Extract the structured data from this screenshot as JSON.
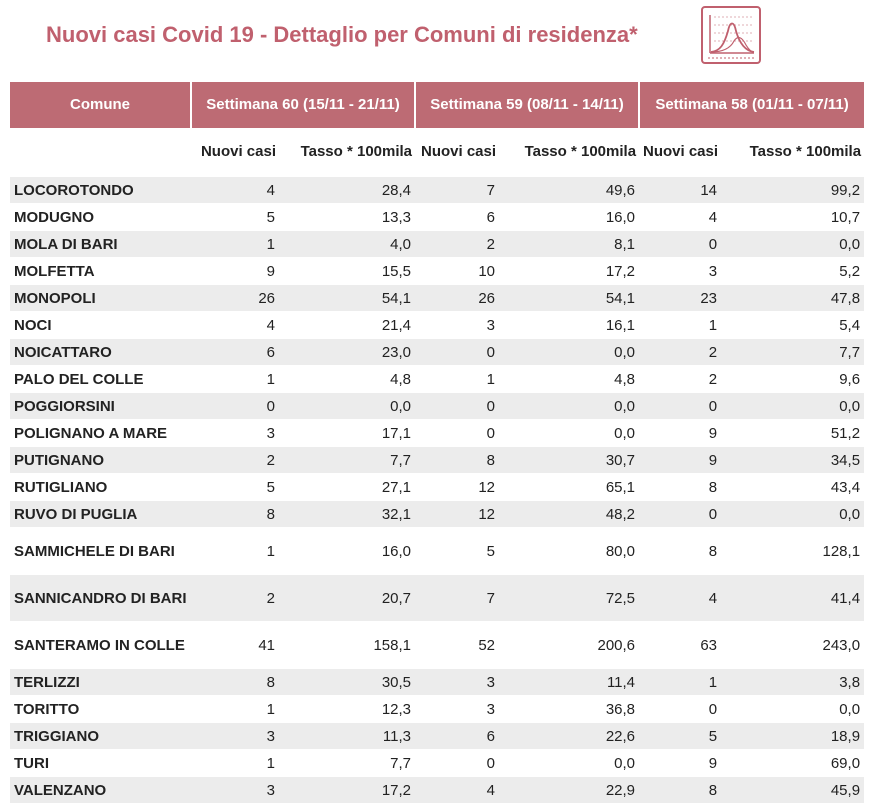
{
  "title": "Nuovi casi Covid 19 - Dettaglio per Comuni di residenza*",
  "logo_icon": "epidemic-curve-icon",
  "accent_color": "#bd6b74",
  "title_color": "#c0606e",
  "table": {
    "headers": {
      "comune": "Comune",
      "week60": "Settimana 60 (15/11 - 21/11)",
      "week59": "Settimana 59 (08/11 - 14/11)",
      "week58": "Settimana 58 (01/11 - 07/11)"
    },
    "subheaders": {
      "cases": "Nuovi casi",
      "rate": "Tasso * 100mila"
    },
    "rows": [
      {
        "name": "LOCOROTONDO",
        "w60c": "4",
        "w60r": "28,4",
        "w59c": "7",
        "w59r": "49,6",
        "w58c": "14",
        "w58r": "99,2"
      },
      {
        "name": "MODUGNO",
        "w60c": "5",
        "w60r": "13,3",
        "w59c": "6",
        "w59r": "16,0",
        "w58c": "4",
        "w58r": "10,7"
      },
      {
        "name": "MOLA DI BARI",
        "w60c": "1",
        "w60r": "4,0",
        "w59c": "2",
        "w59r": "8,1",
        "w58c": "0",
        "w58r": "0,0"
      },
      {
        "name": "MOLFETTA",
        "w60c": "9",
        "w60r": "15,5",
        "w59c": "10",
        "w59r": "17,2",
        "w58c": "3",
        "w58r": "5,2"
      },
      {
        "name": "MONOPOLI",
        "w60c": "26",
        "w60r": "54,1",
        "w59c": "26",
        "w59r": "54,1",
        "w58c": "23",
        "w58r": "47,8"
      },
      {
        "name": "NOCI",
        "w60c": "4",
        "w60r": "21,4",
        "w59c": "3",
        "w59r": "16,1",
        "w58c": "1",
        "w58r": "5,4"
      },
      {
        "name": "NOICATTARO",
        "w60c": "6",
        "w60r": "23,0",
        "w59c": "0",
        "w59r": "0,0",
        "w58c": "2",
        "w58r": "7,7"
      },
      {
        "name": "PALO DEL COLLE",
        "w60c": "1",
        "w60r": "4,8",
        "w59c": "1",
        "w59r": "4,8",
        "w58c": "2",
        "w58r": "9,6"
      },
      {
        "name": "POGGIORSINI",
        "w60c": "0",
        "w60r": "0,0",
        "w59c": "0",
        "w59r": "0,0",
        "w58c": "0",
        "w58r": "0,0"
      },
      {
        "name": "POLIGNANO A MARE",
        "w60c": "3",
        "w60r": "17,1",
        "w59c": "0",
        "w59r": "0,0",
        "w58c": "9",
        "w58r": "51,2"
      },
      {
        "name": "PUTIGNANO",
        "w60c": "2",
        "w60r": "7,7",
        "w59c": "8",
        "w59r": "30,7",
        "w58c": "9",
        "w58r": "34,5"
      },
      {
        "name": "RUTIGLIANO",
        "w60c": "5",
        "w60r": "27,1",
        "w59c": "12",
        "w59r": "65,1",
        "w58c": "8",
        "w58r": "43,4"
      },
      {
        "name": "RUVO DI PUGLIA",
        "w60c": "8",
        "w60r": "32,1",
        "w59c": "12",
        "w59r": "48,2",
        "w58c": "0",
        "w58r": "0,0"
      },
      {
        "name": "SAMMICHELE DI BARI",
        "w60c": "1",
        "w60r": "16,0",
        "w59c": "5",
        "w59r": "80,0",
        "w58c": "8",
        "w58r": "128,1",
        "tall": true
      },
      {
        "name": "SANNICANDRO DI BARI",
        "w60c": "2",
        "w60r": "20,7",
        "w59c": "7",
        "w59r": "72,5",
        "w58c": "4",
        "w58r": "41,4",
        "tall": true
      },
      {
        "name": "SANTERAMO IN COLLE",
        "w60c": "41",
        "w60r": "158,1",
        "w59c": "52",
        "w59r": "200,6",
        "w58c": "63",
        "w58r": "243,0",
        "tall": true
      },
      {
        "name": "TERLIZZI",
        "w60c": "8",
        "w60r": "30,5",
        "w59c": "3",
        "w59r": "11,4",
        "w58c": "1",
        "w58r": "3,8"
      },
      {
        "name": "TORITTO",
        "w60c": "1",
        "w60r": "12,3",
        "w59c": "3",
        "w59r": "36,8",
        "w58c": "0",
        "w58r": "0,0"
      },
      {
        "name": "TRIGGIANO",
        "w60c": "3",
        "w60r": "11,3",
        "w59c": "6",
        "w59r": "22,6",
        "w58c": "5",
        "w58r": "18,9"
      },
      {
        "name": "TURI",
        "w60c": "1",
        "w60r": "7,7",
        "w59c": "0",
        "w59r": "0,0",
        "w58c": "9",
        "w58r": "69,0"
      },
      {
        "name": "VALENZANO",
        "w60c": "3",
        "w60r": "17,2",
        "w59c": "4",
        "w59r": "22,9",
        "w58c": "8",
        "w58r": "45,9"
      }
    ]
  }
}
